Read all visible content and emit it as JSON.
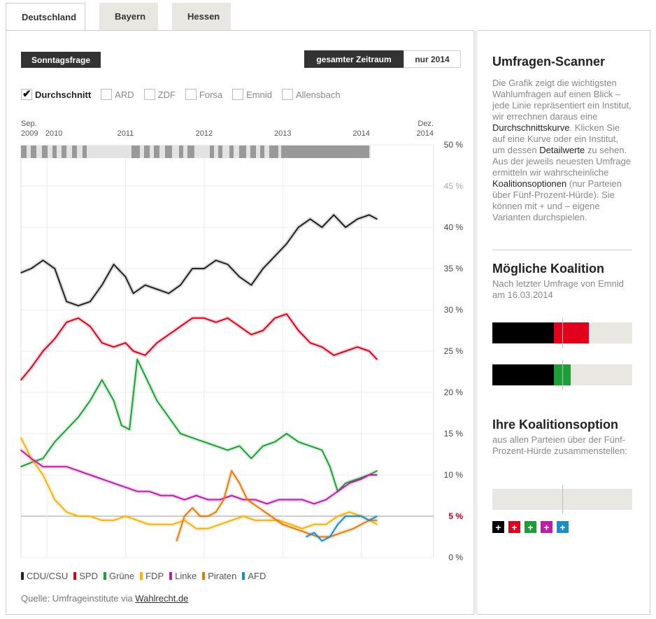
{
  "tabs": [
    "Deutschland",
    "Bayern",
    "Hessen"
  ],
  "buttons": {
    "sonntagsfrage": "Sonntagsfrage",
    "gesamt": "gesamter Zeitraum",
    "nur2014": "nur 2014"
  },
  "filters": [
    {
      "label": "Durchschnitt",
      "checked": true
    },
    {
      "label": "ARD",
      "checked": false
    },
    {
      "label": "ZDF",
      "checked": false
    },
    {
      "label": "Forsa",
      "checked": false
    },
    {
      "label": "Emnid",
      "checked": false
    },
    {
      "label": "Allensbach",
      "checked": false
    }
  ],
  "source": {
    "prefix": "Quelle: Umfrageinstitute via ",
    "link": "Wahlrecht.de"
  },
  "sidebar": {
    "scanner_title": "Umfragen-Scanner",
    "scanner_text_1": "Die Grafik zeigt die wichtigsten Wahlumfragen auf einen Blick – jede Linie repräsentiert ein Institut, wir errechnen daraus eine ",
    "scanner_link_1": "Durchschnittskurve",
    "scanner_text_2": ". Klicken Sie auf eine Kurve oder ein Institut, um dessen ",
    "scanner_link_2": "Detailwerte",
    "scanner_text_3": " zu sehen. Aus der jeweils neuesten Umfrage ermitteln wir wahrscheinliche ",
    "scanner_link_3": "Koalitionsoptionen",
    "scanner_text_4": " (nur Parteien über Fünf-Prozent-Hürde). Sie können mit + und – eigene Varianten durchspielen.",
    "koalition_title": "Mögliche Koalition",
    "koalition_sub": "Nach letzter Umfrage von Emnid am 16.03.2014",
    "own_title": "Ihre Koalitionsoption",
    "own_sub": "aus allen Parteien über der Fünf-Prozent-Hürde zusammenstellen:",
    "plus_symbol": "+"
  },
  "coalitions": [
    {
      "parties": [
        "CDU/CSU",
        "SPD"
      ],
      "values": [
        44,
        25
      ],
      "colors": [
        "#000000",
        "#e3001b"
      ]
    },
    {
      "parties": [
        "CDU/CSU",
        "Grüne"
      ],
      "values": [
        44,
        12
      ],
      "colors": [
        "#000000",
        "#1e9e36"
      ]
    }
  ],
  "chart_data": {
    "type": "line",
    "xlabel": "",
    "ylabel": "",
    "ylim": [
      0,
      50
    ],
    "yticks": [
      "50 %",
      "45 %",
      "40 %",
      "35 %",
      "30 %",
      "25 %",
      "20 %",
      "15 %",
      "10 %",
      "5 %",
      "0 %"
    ],
    "xticks": [
      {
        "label": "Sep.\n2009",
        "year": 2009.67
      },
      {
        "label": "2010",
        "year": 2010.0
      },
      {
        "label": "2011",
        "year": 2011.0
      },
      {
        "label": "2012",
        "year": 2012.0
      },
      {
        "label": "2013",
        "year": 2013.0
      },
      {
        "label": "2014",
        "year": 2014.0
      },
      {
        "label": "Dez.\n2014",
        "year": 2014.92
      }
    ],
    "xlim": [
      2009.67,
      2014.92
    ],
    "threshold": 5,
    "legend": "bottom",
    "series": [
      {
        "name": "CDU/CSU",
        "color": "#222222",
        "x": [
          2009.67,
          2009.8,
          2009.95,
          2010.1,
          2010.25,
          2010.4,
          2010.55,
          2010.7,
          2010.85,
          2011.0,
          2011.1,
          2011.25,
          2011.4,
          2011.55,
          2011.7,
          2011.85,
          2012.0,
          2012.15,
          2012.3,
          2012.45,
          2012.6,
          2012.75,
          2012.9,
          2013.05,
          2013.2,
          2013.35,
          2013.5,
          2013.65,
          2013.8,
          2013.95,
          2014.1,
          2014.2
        ],
        "values": [
          34.5,
          35,
          36,
          35,
          31,
          30.5,
          31,
          33,
          35.5,
          34,
          32,
          33,
          32.5,
          32,
          33,
          35,
          35,
          36,
          35.5,
          34,
          33,
          35,
          36.5,
          38,
          40,
          41,
          40,
          41.5,
          40,
          41,
          41.5,
          41
        ]
      },
      {
        "name": "SPD",
        "color": "#e3001b",
        "x": [
          2009.67,
          2009.8,
          2009.95,
          2010.1,
          2010.25,
          2010.4,
          2010.55,
          2010.7,
          2010.85,
          2011.0,
          2011.1,
          2011.25,
          2011.4,
          2011.55,
          2011.7,
          2011.85,
          2012.0,
          2012.15,
          2012.3,
          2012.45,
          2012.6,
          2012.75,
          2012.9,
          2013.05,
          2013.2,
          2013.35,
          2013.5,
          2013.65,
          2013.8,
          2013.95,
          2014.1,
          2014.2
        ],
        "values": [
          21.5,
          23,
          25,
          26.5,
          28.5,
          29,
          28,
          26,
          25.5,
          26,
          25,
          24.5,
          26,
          27,
          28,
          29,
          29,
          28.5,
          29,
          28,
          27,
          27.5,
          29,
          29.5,
          27.5,
          26,
          25.5,
          24.5,
          25,
          25.5,
          25,
          24
        ]
      },
      {
        "name": "Grüne",
        "color": "#1e9e36",
        "x": [
          2009.67,
          2009.8,
          2009.95,
          2010.1,
          2010.25,
          2010.4,
          2010.55,
          2010.7,
          2010.85,
          2010.95,
          2011.05,
          2011.15,
          2011.25,
          2011.4,
          2011.55,
          2011.7,
          2011.85,
          2012.0,
          2012.15,
          2012.3,
          2012.45,
          2012.6,
          2012.75,
          2012.9,
          2013.05,
          2013.2,
          2013.35,
          2013.5,
          2013.6,
          2013.7,
          2013.8,
          2013.95,
          2014.1,
          2014.2
        ],
        "values": [
          11,
          11.5,
          12,
          14,
          15.5,
          17,
          19,
          21.5,
          19,
          16,
          15.5,
          24,
          22,
          19,
          17,
          15,
          14.5,
          14,
          13.5,
          13,
          13.5,
          12,
          13.5,
          14,
          15,
          14,
          13.5,
          13,
          11,
          8,
          9,
          9.5,
          10,
          10.5
        ]
      },
      {
        "name": "FDP",
        "color": "#ffb000",
        "x": [
          2009.67,
          2009.8,
          2009.95,
          2010.1,
          2010.25,
          2010.4,
          2010.55,
          2010.7,
          2010.85,
          2011.0,
          2011.15,
          2011.3,
          2011.45,
          2011.6,
          2011.75,
          2011.9,
          2012.05,
          2012.2,
          2012.35,
          2012.5,
          2012.65,
          2012.8,
          2012.95,
          2013.1,
          2013.25,
          2013.4,
          2013.55,
          2013.7,
          2013.85,
          2014.0,
          2014.1,
          2014.2
        ],
        "values": [
          14.5,
          12,
          10,
          7,
          5.5,
          5,
          5,
          4.5,
          4.5,
          5,
          4.5,
          4,
          4,
          4,
          4.5,
          3.5,
          3.5,
          4,
          4.5,
          5,
          4.5,
          4.5,
          4.5,
          4,
          3.5,
          4,
          4,
          5,
          5.5,
          5,
          4.5,
          4
        ]
      },
      {
        "name": "Linke",
        "color": "#c21aa8",
        "x": [
          2009.67,
          2009.8,
          2009.95,
          2010.1,
          2010.25,
          2010.4,
          2010.55,
          2010.7,
          2010.85,
          2011.0,
          2011.15,
          2011.3,
          2011.45,
          2011.6,
          2011.75,
          2011.9,
          2012.05,
          2012.2,
          2012.35,
          2012.5,
          2012.65,
          2012.8,
          2012.95,
          2013.1,
          2013.25,
          2013.4,
          2013.55,
          2013.7,
          2013.85,
          2014.0,
          2014.1,
          2014.2
        ],
        "values": [
          13,
          12,
          11,
          11,
          11,
          10.5,
          10,
          9.5,
          9,
          8.5,
          8,
          8,
          7.5,
          7.5,
          7,
          7.5,
          7,
          7,
          7.5,
          7,
          7,
          6.5,
          7,
          7,
          7,
          6.5,
          7,
          8,
          9,
          9.5,
          10,
          10
        ]
      },
      {
        "name": "Piraten",
        "color": "#f07800",
        "x": [
          2011.65,
          2011.75,
          2011.85,
          2011.95,
          2012.05,
          2012.15,
          2012.25,
          2012.35,
          2012.45,
          2012.55,
          2012.7,
          2012.85,
          2013.0,
          2013.15,
          2013.3,
          2013.45,
          2013.6,
          2013.75,
          2013.9,
          2014.0,
          2014.1,
          2014.2
        ],
        "values": [
          2,
          5,
          6,
          5,
          5,
          5.5,
          7,
          10.5,
          9,
          7,
          6,
          5,
          4,
          3.5,
          3,
          2.5,
          2.5,
          3,
          3.5,
          4,
          4.5,
          4.5
        ]
      },
      {
        "name": "AFD",
        "color": "#1b8ccc",
        "x": [
          2013.3,
          2013.4,
          2013.5,
          2013.6,
          2013.7,
          2013.8,
          2013.9,
          2014.0,
          2014.1,
          2014.2
        ],
        "values": [
          2.5,
          3,
          2,
          2.5,
          4,
          5,
          5,
          5,
          4.5,
          5
        ]
      }
    ]
  }
}
